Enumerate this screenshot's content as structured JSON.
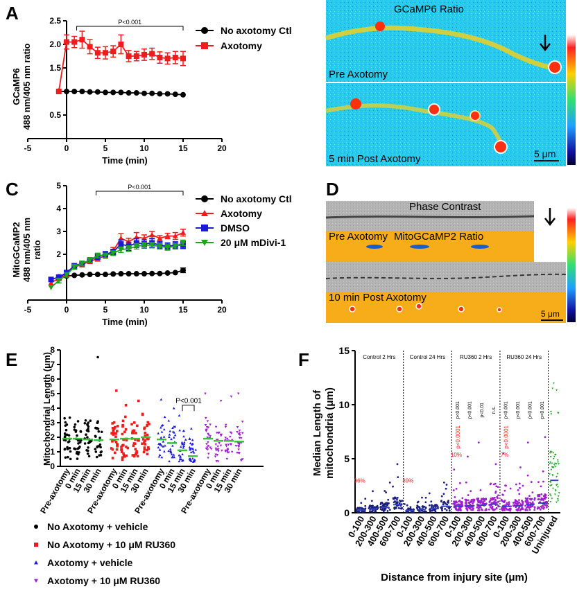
{
  "panel_labels": [
    "A",
    "B",
    "C",
    "D",
    "E",
    "F"
  ],
  "colors": {
    "black": "#000000",
    "red": "#ee1c1c",
    "blue": "#1a1ad6",
    "green": "#1ea31e",
    "purple": "#a020d0",
    "darkblue": "#1b1f7a",
    "orange": "#f7ad1a"
  },
  "chart_data": [
    {
      "id": "A",
      "type": "line",
      "ylabel_line1": "GCaMP6",
      "ylabel_line2": "488 nm/405 nm ratio",
      "xlabel": "Time (min)",
      "xlim": [
        -5,
        20
      ],
      "ylim": [
        0,
        2.5
      ],
      "xticks": [
        "-5",
        "0",
        "5",
        "10",
        "15",
        "20"
      ],
      "yticks": [
        "0.5",
        "1",
        "1.5",
        "2.0",
        "2.5"
      ],
      "ytick_values": [
        0.5,
        1,
        1.5,
        2.0,
        2.5
      ],
      "annotation": "P<0.001",
      "bracket_x": [
        1.3,
        15
      ],
      "series": [
        {
          "name": "No axotomy Ctl",
          "color": "#000000",
          "marker": "circle",
          "x": [
            -1,
            0,
            1,
            2,
            3,
            4,
            5,
            6,
            7,
            8,
            9,
            10,
            11,
            12,
            13,
            14,
            15
          ],
          "y": [
            1.0,
            1.0,
            1.0,
            1.0,
            0.99,
            0.99,
            0.98,
            0.98,
            0.98,
            0.97,
            0.97,
            0.96,
            0.96,
            0.95,
            0.95,
            0.94,
            0.93
          ],
          "err": [
            0,
            0,
            0,
            0,
            0,
            0,
            0,
            0,
            0,
            0,
            0,
            0,
            0,
            0,
            0,
            0,
            0
          ]
        },
        {
          "name": "Axotomy",
          "color": "#ee1c1c",
          "marker": "square",
          "x": [
            -1,
            0,
            1,
            2,
            3,
            4,
            5,
            6,
            7,
            8,
            9,
            10,
            11,
            12,
            13,
            14,
            15
          ],
          "y": [
            1.0,
            2.05,
            2.05,
            2.1,
            1.95,
            1.82,
            1.82,
            1.85,
            2.0,
            1.75,
            1.75,
            1.78,
            1.8,
            1.72,
            1.7,
            1.72,
            1.7
          ],
          "err": [
            0,
            0.15,
            0.12,
            0.18,
            0.15,
            0.12,
            0.13,
            0.12,
            0.2,
            0.12,
            0.1,
            0.12,
            0.12,
            0.12,
            0.12,
            0.13,
            0.15
          ]
        }
      ]
    },
    {
      "id": "C",
      "type": "line",
      "ylabel_line1": "MitoGCaMP2",
      "ylabel_line2": "488 nm/405 nm",
      "ylabel_line3": "ratio",
      "xlabel": "Time (min)",
      "xlim": [
        -5,
        20
      ],
      "ylim": [
        0,
        5
      ],
      "xticks": [
        "-5",
        "0",
        "5",
        "10",
        "15",
        "20"
      ],
      "yticks": [
        "1",
        "2",
        "3",
        "4",
        "5"
      ],
      "ytick_values": [
        1,
        2,
        3,
        4,
        5
      ],
      "annotation": "P<0.001",
      "bracket_x": [
        3.8,
        15
      ],
      "series": [
        {
          "name": "No axotomy Ctl",
          "color": "#000000",
          "marker": "circle",
          "x": [
            -1,
            0,
            1,
            2,
            3,
            4,
            5,
            6,
            7,
            8,
            9,
            10,
            11,
            12,
            13,
            14,
            15
          ],
          "y": [
            1.0,
            1.05,
            1.08,
            1.1,
            1.12,
            1.12,
            1.12,
            1.14,
            1.15,
            1.15,
            1.15,
            1.15,
            1.16,
            1.16,
            1.18,
            1.2,
            1.3
          ],
          "err": [
            0,
            0,
            0,
            0,
            0,
            0,
            0,
            0,
            0,
            0,
            0,
            0,
            0,
            0,
            0,
            0,
            0.1
          ]
        },
        {
          "name": "Axotomy",
          "color": "#ee1c1c",
          "marker": "triangle",
          "x": [
            -2,
            -1,
            0,
            1,
            2,
            3,
            4,
            5,
            6,
            7,
            8,
            9,
            10,
            11,
            12,
            13,
            14,
            15
          ],
          "y": [
            0.75,
            0.95,
            1.15,
            1.45,
            1.55,
            1.7,
            1.8,
            1.95,
            2.15,
            2.7,
            2.55,
            2.75,
            2.7,
            2.85,
            2.7,
            2.8,
            2.8,
            2.95
          ],
          "err": [
            0,
            0.1,
            0.1,
            0.1,
            0.1,
            0.1,
            0.1,
            0.12,
            0.15,
            0.2,
            0.15,
            0.2,
            0.15,
            0.15,
            0.12,
            0.12,
            0.15,
            0.15
          ]
        },
        {
          "name": "DMSO",
          "color": "#1a1ad6",
          "marker": "square",
          "x": [
            -2,
            -1,
            0,
            1,
            2,
            3,
            4,
            5,
            6,
            7,
            8,
            9,
            10,
            11,
            12,
            13,
            14,
            15
          ],
          "y": [
            0.9,
            1.0,
            1.2,
            1.5,
            1.6,
            1.75,
            1.9,
            2.0,
            2.1,
            2.45,
            2.35,
            2.5,
            2.45,
            2.5,
            2.4,
            2.35,
            2.4,
            2.4
          ],
          "err": [
            0,
            0.1,
            0.1,
            0.1,
            0.1,
            0.1,
            0.12,
            0.12,
            0.12,
            0.18,
            0.18,
            0.2,
            0.18,
            0.18,
            0.15,
            0.15,
            0.15,
            0.15
          ]
        },
        {
          "name": "20 μM mDivi-1",
          "color": "#1ea31e",
          "marker": "triangle-down",
          "x": [
            -2,
            -1,
            0,
            1,
            2,
            3,
            4,
            5,
            6,
            7,
            8,
            9,
            10,
            11,
            12,
            13,
            14,
            15
          ],
          "y": [
            0.55,
            0.85,
            1.1,
            1.45,
            1.6,
            1.75,
            1.95,
            1.95,
            2.05,
            2.2,
            2.25,
            2.35,
            2.4,
            2.4,
            2.35,
            2.3,
            2.35,
            2.5
          ],
          "err": [
            0,
            0.1,
            0.1,
            0.1,
            0.1,
            0.1,
            0.1,
            0.1,
            0.1,
            0.12,
            0.12,
            0.12,
            0.12,
            0.12,
            0.12,
            0.12,
            0.12,
            0.12
          ]
        }
      ]
    },
    {
      "id": "E",
      "type": "scatter",
      "ylabel": "Mitochondrial Length (μm)",
      "ylim": [
        0,
        8
      ],
      "yticks": [
        "0",
        "1",
        "2",
        "3",
        "4",
        "5",
        "6",
        "7",
        "8"
      ],
      "ytick_values": [
        0,
        1,
        2,
        3,
        4,
        5,
        6,
        7,
        8
      ],
      "category_labels": [
        "Pre-axotomy",
        "0 min",
        "15 min",
        "30 min"
      ],
      "annotation": "P<0.001",
      "groups": [
        {
          "name": "No Axotomy + vehicle",
          "color": "#000000",
          "marker": "circle",
          "medians": [
            1.9,
            1.9,
            1.85,
            1.8
          ],
          "maxes": [
            3.3,
            3.1,
            3.0,
            7.5
          ]
        },
        {
          "name": "No Axotomy + 10 μM RU360",
          "color": "#ee1c1c",
          "marker": "square",
          "medians": [
            1.85,
            1.9,
            1.9,
            2.0
          ],
          "maxes": [
            5.2,
            4.2,
            4.5,
            3.6
          ]
        },
        {
          "name": "Axotomy + vehicle",
          "color": "#1a1ad6",
          "marker": "triangle",
          "medians": [
            1.85,
            1.6,
            1.1,
            0.7
          ],
          "maxes": [
            4.6,
            4.0,
            3.5,
            2.6
          ]
        },
        {
          "name": "Axotomy + 10 μM RU360",
          "color": "#a020d0",
          "marker": "triangle-down",
          "medians": [
            1.9,
            1.75,
            1.75,
            1.7
          ],
          "maxes": [
            5.0,
            4.5,
            4.8,
            5.0
          ]
        }
      ]
    },
    {
      "id": "F",
      "type": "scatter",
      "ylabel_line1": "Median Length of",
      "ylabel_line2": "mitochondria (μm)",
      "xlabel": "Distance from injury site (μm)",
      "ylim": [
        0,
        15
      ],
      "yticks": [
        "0",
        "5",
        "10",
        "15"
      ],
      "ytick_values": [
        0,
        5,
        10,
        15
      ],
      "group_titles": [
        "Control 2 Hrs",
        "Control 24 Hrs",
        "RU360 2 Hrs",
        "RU360 24 Hrs"
      ],
      "category_labels": [
        "0-100",
        "200-300",
        "400-500",
        "600-700",
        "0-100",
        "200-300",
        "400-500",
        "600-700",
        "0-100",
        "200-300",
        "400-500",
        "600-700",
        "0-100",
        "200-300",
        "400-500",
        "600-700",
        "Uninjured"
      ],
      "medians": [
        0.25,
        0.35,
        0.5,
        0.75,
        0.2,
        0.3,
        0.4,
        0.6,
        0.6,
        0.65,
        0.7,
        0.8,
        0.6,
        0.65,
        0.75,
        0.9,
        3.0
      ],
      "maxes": [
        1.3,
        2.0,
        2.8,
        4.5,
        0.8,
        1.4,
        1.8,
        2.6,
        4.0,
        5.2,
        6.5,
        4.5,
        5.5,
        4.2,
        6.5,
        7.0,
        11.5
      ],
      "pvalues": [
        "",
        "",
        "",
        "",
        "",
        "",
        "",
        "",
        "p<0.001",
        "p<0.001",
        "p<0.01",
        "n.s.",
        "p<0.001",
        "p<0.001",
        "p<0.001",
        "p<0.001",
        ""
      ],
      "red_annotations": [
        {
          "cat": 0,
          "text": "96%",
          "y": 2.8
        },
        {
          "cat": 4,
          "text": "89%",
          "y": 2.8
        },
        {
          "cat": 8,
          "text": "p<0.0001",
          "y": 7.0
        },
        {
          "cat": 8,
          "text": "10%",
          "y": 5.2
        },
        {
          "cat": 12,
          "text": "p<0.0001",
          "y": 7.0
        },
        {
          "cat": 12,
          "text": "7%",
          "y": 5.2
        }
      ]
    }
  ],
  "images": {
    "B": {
      "title": "GCaMP6 Ratio",
      "upper_label": "Pre Axotomy",
      "lower_label": "5 min Post Axotomy",
      "scale": "5 μm"
    },
    "D": {
      "top_label": "Phase Contrast",
      "mid_label": "Pre Axotomy",
      "ratio_label": "MitoGCaMP2 Ratio",
      "lower_label": "10 min Post Axotomy",
      "scale": "5 μm"
    }
  }
}
